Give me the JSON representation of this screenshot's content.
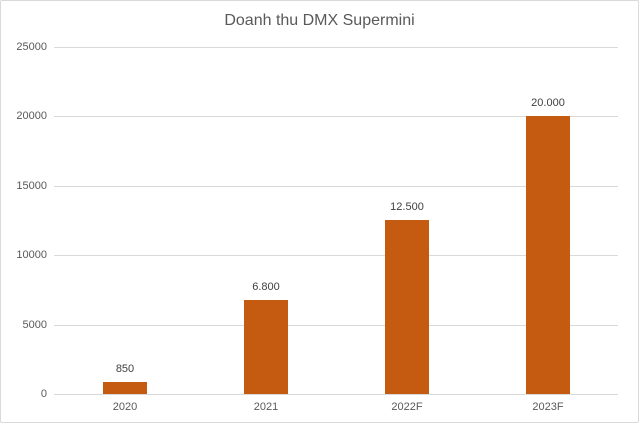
{
  "chart_data": {
    "type": "bar",
    "title": "Doanh thu DMX Supermini",
    "categories": [
      "2020",
      "2021",
      "2022F",
      "2023F"
    ],
    "values": [
      850,
      6800,
      12500,
      20000
    ],
    "value_labels": [
      "850",
      "6.800",
      "12.500",
      "20.000"
    ],
    "xlabel": "",
    "ylabel": "",
    "ylim": [
      0,
      25000
    ],
    "yticks": [
      0,
      5000,
      10000,
      15000,
      20000,
      25000
    ],
    "ytick_labels": [
      "0",
      "5000",
      "10000",
      "15000",
      "20000",
      "25000"
    ],
    "grid": true,
    "legend": false,
    "colors": {
      "bar": "#C55A11",
      "title_text": "#595959",
      "axis_text": "#595959",
      "value_text": "#404040",
      "gridline": "#D9D9D9",
      "border": "#D9D9D9",
      "background": "#FFFFFF"
    }
  }
}
